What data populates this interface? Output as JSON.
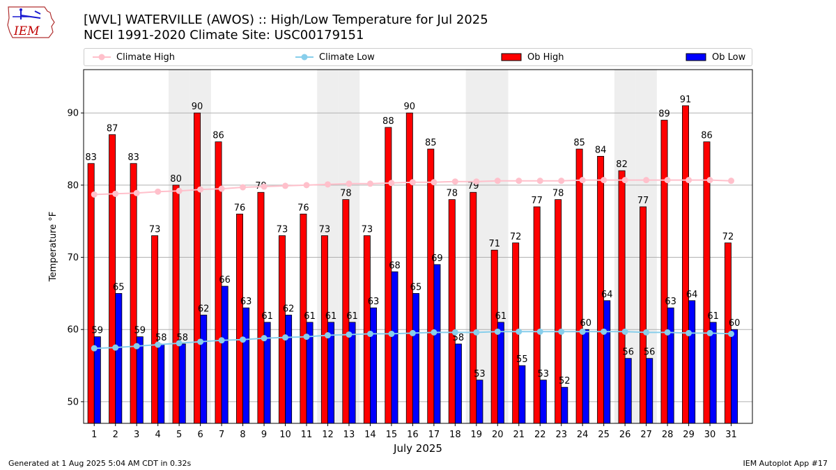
{
  "header": {
    "logo_text": "IEM",
    "title_line1": "[WVL] WATERVILLE (AWOS) :: High/Low Temperature for Jul 2025",
    "title_line2": "NCEI 1991-2020 Climate Site: USC00179151"
  },
  "legend": {
    "climate_high": "Climate High",
    "climate_low": "Climate Low",
    "ob_high": "Ob High",
    "ob_low": "Ob Low"
  },
  "footer": {
    "left": "Generated at 1 Aug 2025 5:04 AM CDT in 0.32s",
    "right": "IEM Autoplot App #17"
  },
  "colors": {
    "ob_high": "#ff0000",
    "ob_low": "#0000ff",
    "climate_high": "#ffc0cb",
    "climate_low": "#87ceeb",
    "weekend_shade": "#eeeeee",
    "grid": "#b0b0b0"
  },
  "chart_data": {
    "type": "bar",
    "xlabel": "July 2025",
    "ylabel": "Temperature °F",
    "ylim": [
      47,
      96
    ],
    "yticks": [
      50,
      60,
      70,
      80,
      90
    ],
    "grid": "horizontal",
    "legend_position": "top",
    "categories": [
      "1",
      "2",
      "3",
      "4",
      "5",
      "6",
      "7",
      "8",
      "9",
      "10",
      "11",
      "12",
      "13",
      "14",
      "15",
      "16",
      "17",
      "18",
      "19",
      "20",
      "21",
      "22",
      "23",
      "24",
      "25",
      "26",
      "27",
      "28",
      "29",
      "30",
      "31"
    ],
    "weekend_days": [
      5,
      6,
      12,
      13,
      19,
      20,
      26,
      27
    ],
    "series": [
      {
        "name": "Ob High",
        "kind": "bar",
        "values": [
          83,
          87,
          83,
          73,
          80,
          90,
          86,
          76,
          79,
          73,
          76,
          73,
          78,
          73,
          88,
          90,
          85,
          78,
          79,
          71,
          72,
          77,
          78,
          85,
          84,
          82,
          77,
          89,
          91,
          86,
          72
        ]
      },
      {
        "name": "Ob Low",
        "kind": "bar",
        "values": [
          59,
          65,
          59,
          58,
          58,
          62,
          66,
          63,
          61,
          62,
          61,
          61,
          61,
          63,
          68,
          65,
          69,
          58,
          53,
          61,
          55,
          53,
          52,
          60,
          64,
          56,
          56,
          63,
          64,
          61,
          60
        ]
      },
      {
        "name": "Climate High",
        "kind": "line",
        "values": [
          78.7,
          78.8,
          78.9,
          79.1,
          79.2,
          79.4,
          79.5,
          79.7,
          79.8,
          79.9,
          80.0,
          80.1,
          80.2,
          80.2,
          80.3,
          80.4,
          80.4,
          80.5,
          80.5,
          80.6,
          80.6,
          80.6,
          80.6,
          80.7,
          80.7,
          80.7,
          80.7,
          80.7,
          80.7,
          80.7,
          80.6
        ]
      },
      {
        "name": "Climate Low",
        "kind": "line",
        "values": [
          57.4,
          57.5,
          57.7,
          57.9,
          58.1,
          58.3,
          58.5,
          58.6,
          58.8,
          58.9,
          59.0,
          59.2,
          59.3,
          59.4,
          59.4,
          59.5,
          59.6,
          59.6,
          59.6,
          59.7,
          59.7,
          59.7,
          59.7,
          59.7,
          59.7,
          59.7,
          59.6,
          59.6,
          59.5,
          59.5,
          59.4
        ]
      }
    ]
  }
}
